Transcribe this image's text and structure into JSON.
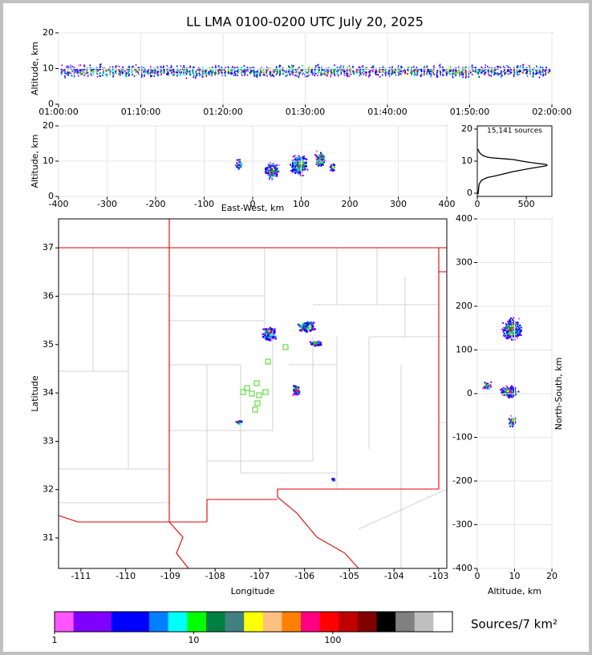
{
  "title": "LL LMA 0100-0200 UTC July 20, 2025",
  "chart_data": [
    {
      "type": "time-height",
      "ylabel": "Altitude, km",
      "xlim": [
        "01:00:00",
        "02:00:00"
      ],
      "xticks": [
        "01:00:00",
        "01:10:00",
        "01:20:00",
        "01:30:00",
        "01:40:00",
        "01:50:00",
        "02:00:00"
      ],
      "ylim": [
        0,
        20
      ],
      "yticks": [
        0,
        10,
        20
      ]
    },
    {
      "type": "ew-height",
      "xlabel": "East-West, km",
      "ylabel": "Altitude, km",
      "xlim": [
        -400,
        400
      ],
      "xticks": [
        -400,
        -300,
        -200,
        -100,
        0,
        100,
        200,
        300,
        400
      ],
      "ylim": [
        0,
        20
      ],
      "yticks": [
        0,
        10,
        20
      ]
    },
    {
      "type": "histogram",
      "annotation": "15,141 sources",
      "xlim": [
        0,
        760
      ],
      "xticks": [
        0,
        500
      ],
      "ylim": [
        -1,
        21
      ],
      "yticks": [
        0,
        10,
        20
      ]
    },
    {
      "type": "map",
      "xlabel": "Longitude",
      "ylabel": "Latitude",
      "xlim": [
        -111.5,
        -102.82
      ],
      "xticks": [
        -111,
        -110,
        -109,
        -108,
        -107,
        -106,
        -105,
        -104,
        -103
      ],
      "ylim": [
        30.37,
        37.6
      ],
      "yticks": [
        31,
        32,
        33,
        34,
        35,
        36,
        37
      ]
    },
    {
      "type": "height-ns",
      "xlabel": "Altitude, km",
      "ylabel": "North-South, km",
      "xlim": [
        0,
        20
      ],
      "xticks": [
        0,
        10,
        20
      ],
      "ylim": [
        -400,
        400
      ],
      "yticks": [
        -400,
        -300,
        -200,
        -100,
        0,
        100,
        200,
        300,
        400
      ]
    },
    {
      "type": "colorbar",
      "label": "Sources/7 km²",
      "scale": "log",
      "xlim": [
        1,
        724
      ],
      "xticks": [
        1,
        10,
        100
      ],
      "colors": [
        "#ff55ff",
        "#8000ff",
        "#8000ff",
        "#0000ff",
        "#0000ff",
        "#0080ff",
        "#00ffff",
        "#00ff00",
        "#008040",
        "#408080",
        "#ffff00",
        "#ffc080",
        "#ff8000",
        "#ff0080",
        "#ff0000",
        "#c00000",
        "#800000",
        "#000000",
        "#808080",
        "#c0c0c0",
        "#ffffff"
      ]
    }
  ]
}
